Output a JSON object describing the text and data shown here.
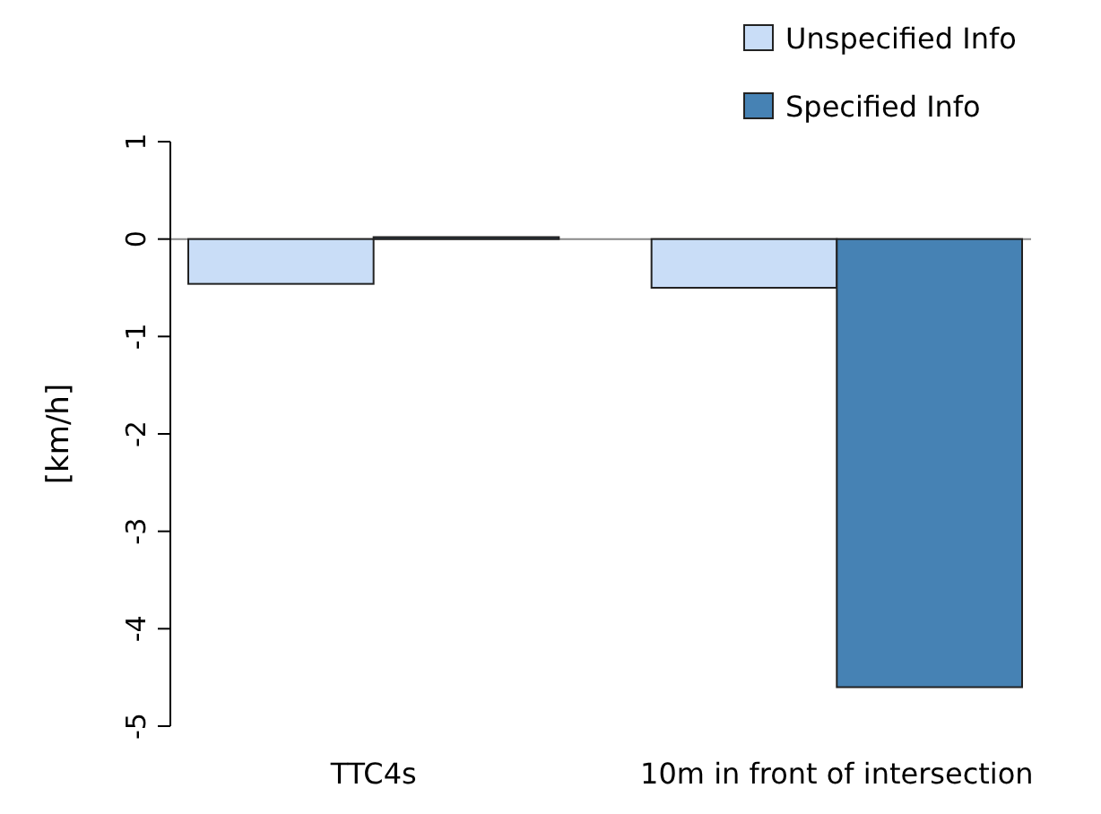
{
  "chart_data": {
    "type": "bar",
    "ylabel": "[km/h]",
    "categories": [
      "TTC4s",
      "10m in front of intersection"
    ],
    "series": [
      {
        "name": "Unspecified Info",
        "color": "#c9ddf7",
        "values": [
          -0.46,
          -0.5
        ]
      },
      {
        "name": "Specified Info",
        "color": "#4682b4",
        "values": [
          0.02,
          -4.6
        ]
      }
    ],
    "ylim": [
      -5,
      1
    ],
    "yticks": [
      -5,
      -4,
      -3,
      -2,
      -1,
      0,
      1
    ],
    "ref_lines": [
      {
        "axis": "y",
        "value": 0,
        "color": "#888888"
      }
    ],
    "legend": "top right",
    "grid": false
  }
}
